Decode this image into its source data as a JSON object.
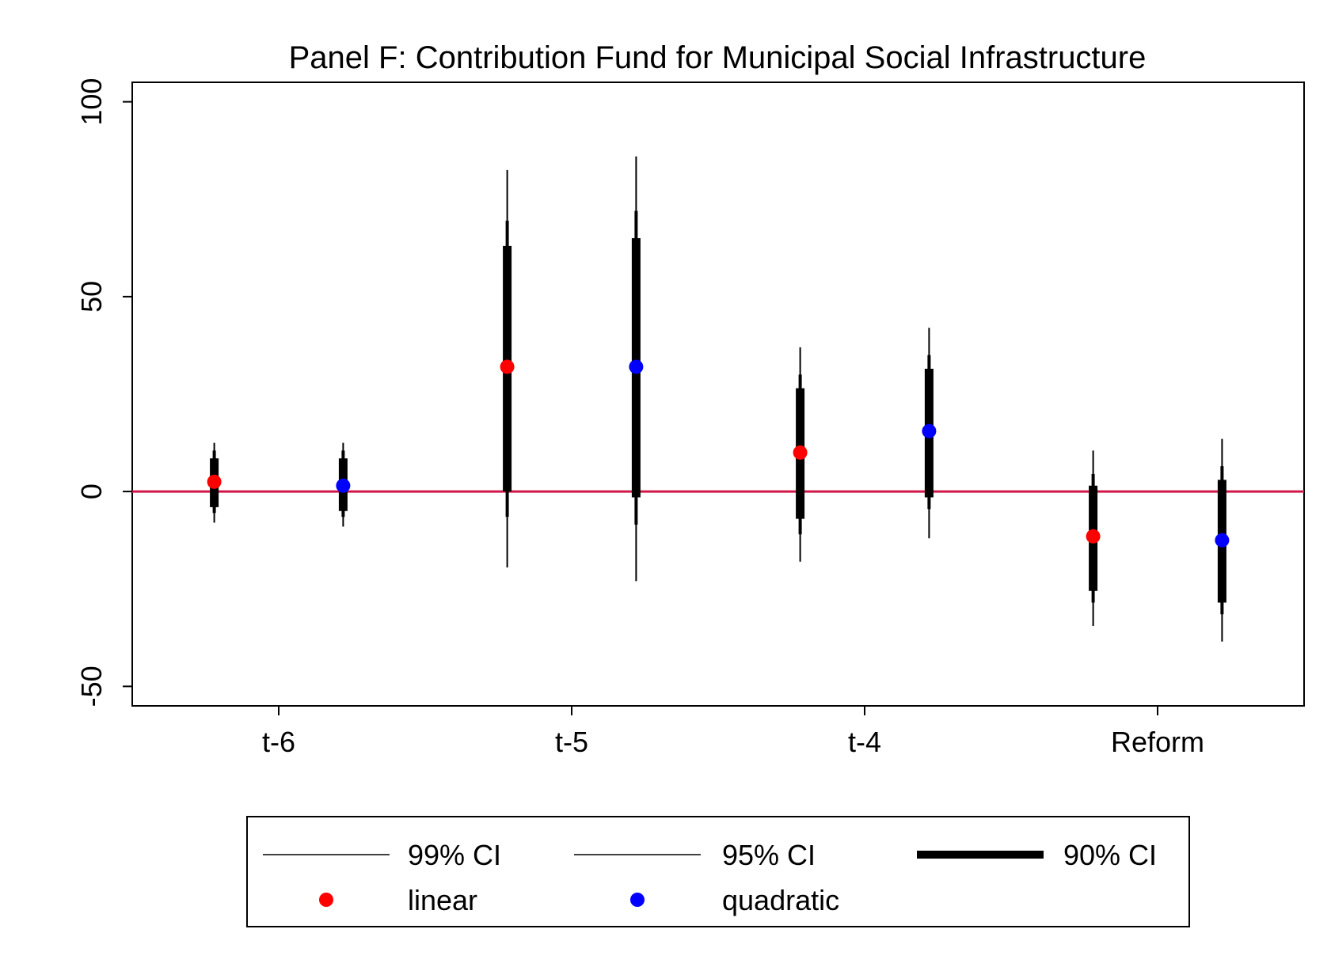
{
  "chart_data": {
    "type": "scatter",
    "title": "Panel F: Contribution Fund for Municipal Social Infrastructure",
    "xlabel": "",
    "ylabel": "",
    "categories": [
      "t-6",
      "t-5",
      "t-4",
      "Reform"
    ],
    "ylim": [
      -55,
      105
    ],
    "yticks": [
      -50,
      0,
      50,
      100
    ],
    "reference_line": {
      "y": 0,
      "color": "#d1174a"
    },
    "grid": false,
    "legend_position": "bottom",
    "series": [
      {
        "name": "linear",
        "color": "#ff0000",
        "points": [
          {
            "category": "t-6",
            "estimate": 2.5,
            "ci99": [
              -8,
              12.5
            ],
            "ci95": [
              -5.5,
              10.5
            ],
            "ci90": [
              -4,
              8.5
            ]
          },
          {
            "category": "t-5",
            "estimate": 32,
            "ci99": [
              -19.5,
              82.5
            ],
            "ci95": [
              -6.5,
              69.5
            ],
            "ci90": [
              0,
              63
            ]
          },
          {
            "category": "t-4",
            "estimate": 10,
            "ci99": [
              -18,
              37
            ],
            "ci95": [
              -11,
              30
            ],
            "ci90": [
              -7,
              26.5
            ]
          },
          {
            "category": "Reform",
            "estimate": -11.5,
            "ci99": [
              -34.5,
              10.5
            ],
            "ci95": [
              -28.5,
              4.5
            ],
            "ci90": [
              -25.5,
              1.5
            ]
          }
        ]
      },
      {
        "name": "quadratic",
        "color": "#0000ff",
        "points": [
          {
            "category": "t-6",
            "estimate": 1.5,
            "ci99": [
              -9,
              12.5
            ],
            "ci95": [
              -6.5,
              10.5
            ],
            "ci90": [
              -5,
              8.5
            ]
          },
          {
            "category": "t-5",
            "estimate": 32,
            "ci99": [
              -23,
              86
            ],
            "ci95": [
              -8.5,
              72
            ],
            "ci90": [
              -1.5,
              65
            ]
          },
          {
            "category": "t-4",
            "estimate": 15.5,
            "ci99": [
              -12,
              42
            ],
            "ci95": [
              -4.5,
              35
            ],
            "ci90": [
              -1.5,
              31.5
            ]
          },
          {
            "category": "Reform",
            "estimate": -12.5,
            "ci99": [
              -38.5,
              13.5
            ],
            "ci95": [
              -31.5,
              6.5
            ],
            "ci90": [
              -28.5,
              3
            ]
          }
        ]
      }
    ]
  },
  "legend": {
    "items": [
      {
        "kind": "line",
        "weight": "thin",
        "label": "99% CI"
      },
      {
        "kind": "line",
        "weight": "thin",
        "label": "95% CI"
      },
      {
        "kind": "line",
        "weight": "thick",
        "label": "90% CI"
      },
      {
        "kind": "dot",
        "color": "#ff0000",
        "label": "linear"
      },
      {
        "kind": "dot",
        "color": "#0000ff",
        "label": "quadratic"
      }
    ]
  }
}
